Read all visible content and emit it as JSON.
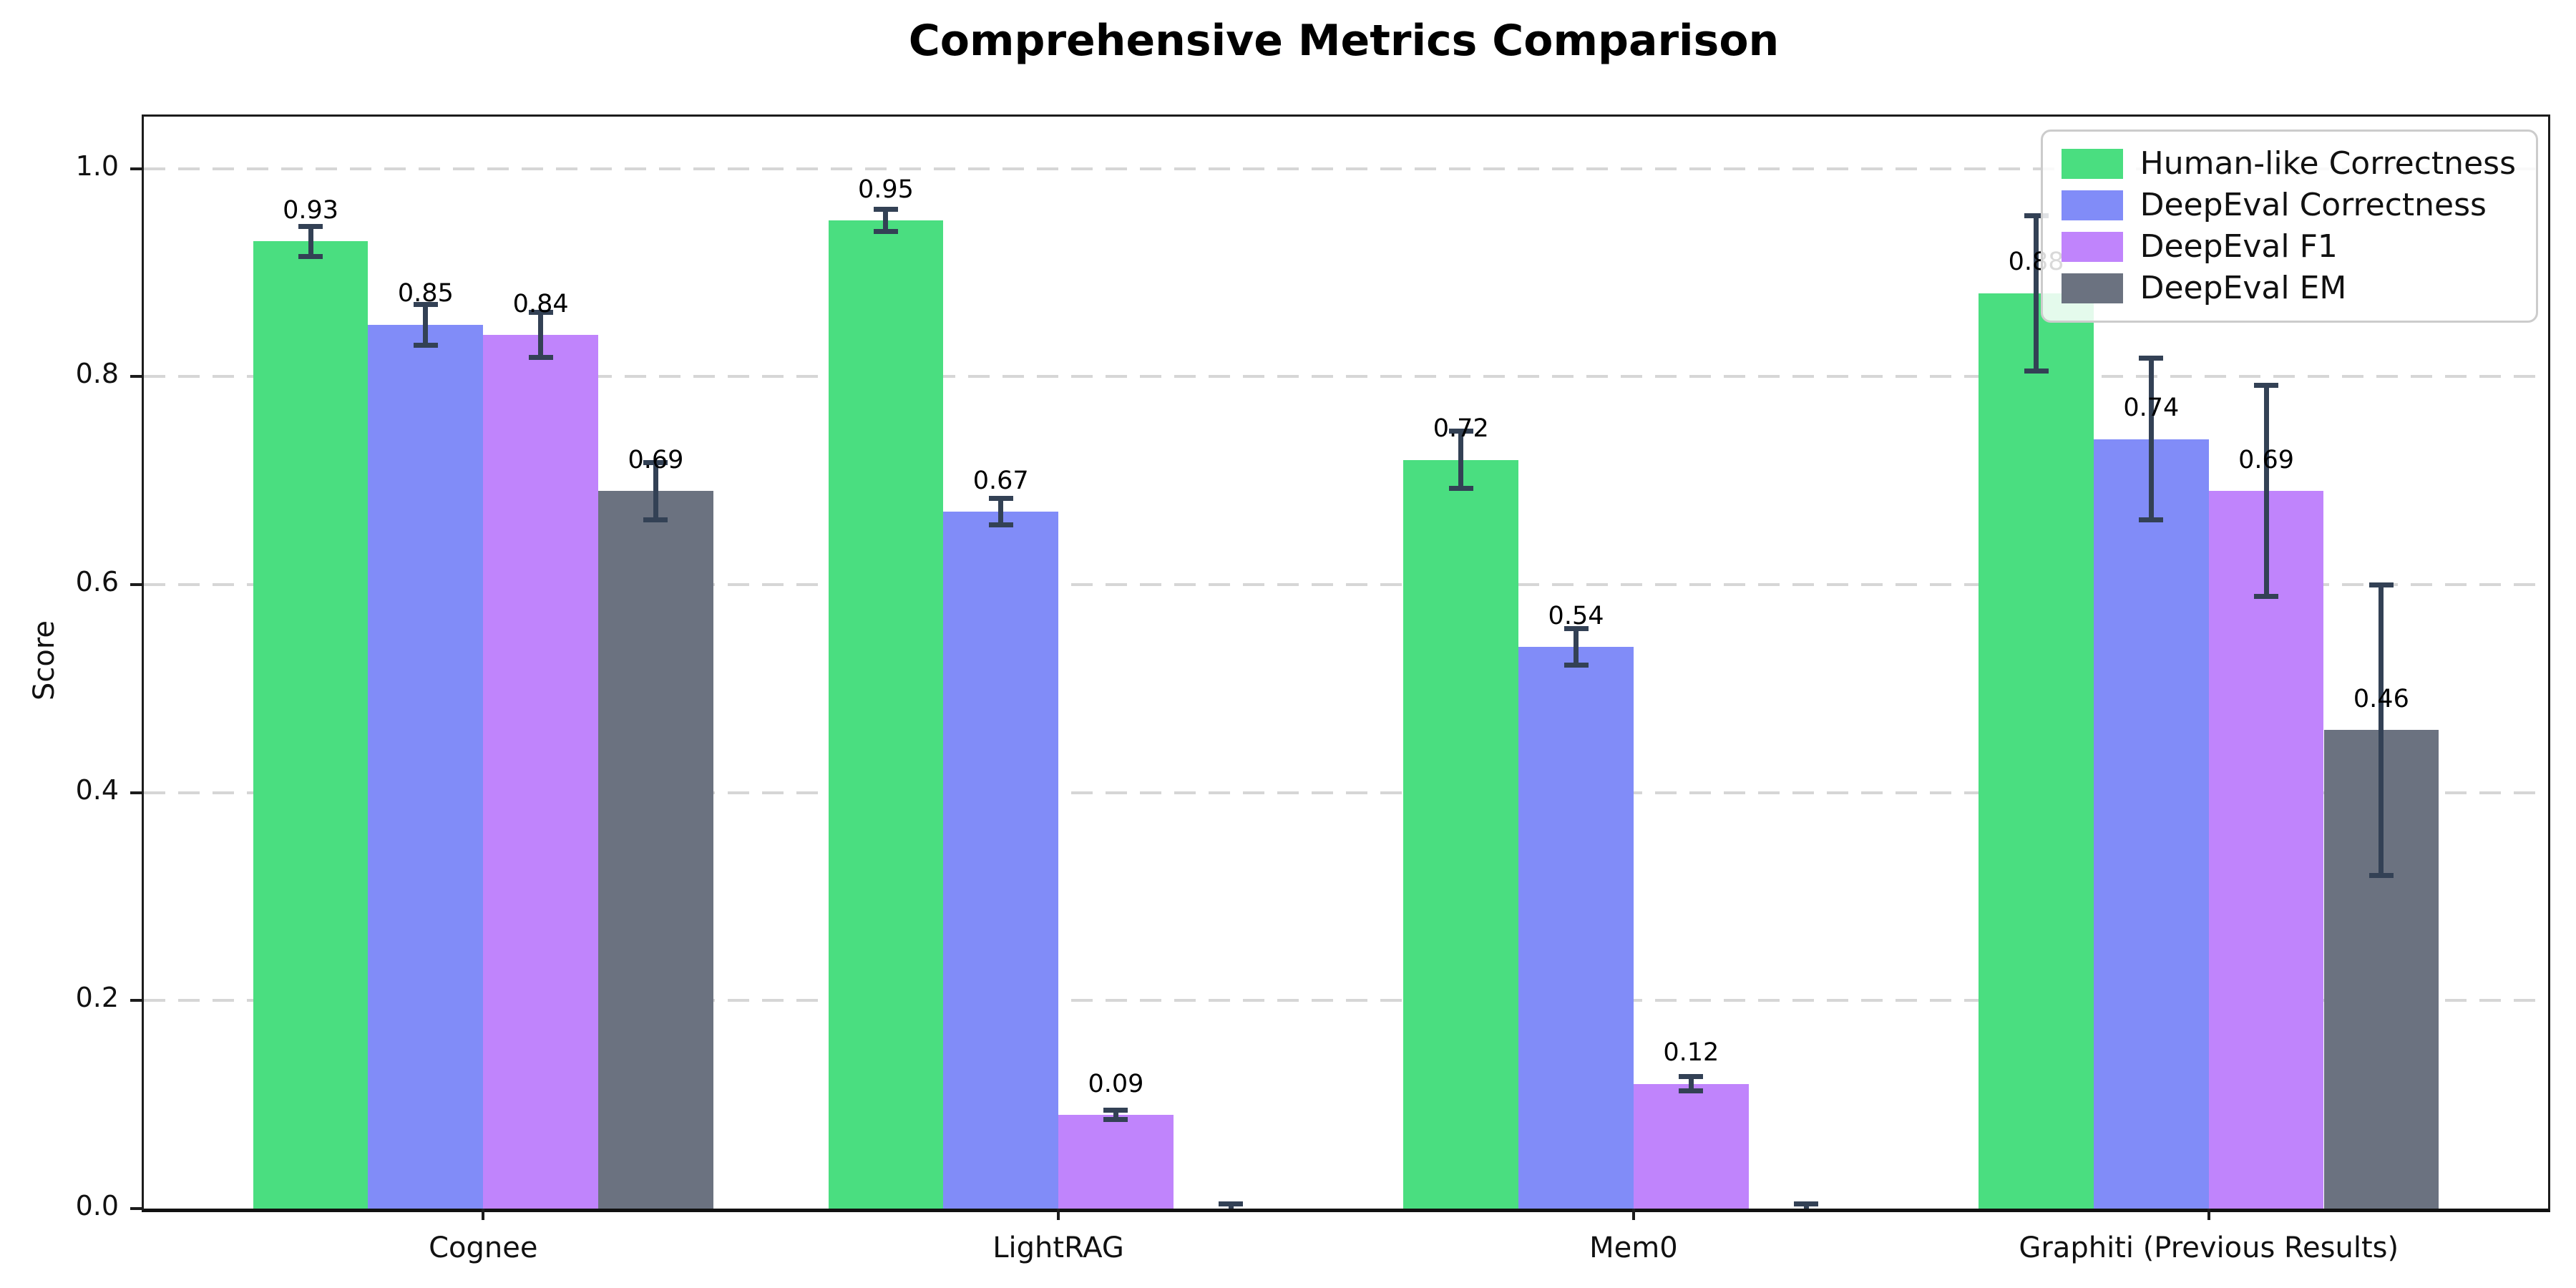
{
  "chart_data": {
    "type": "bar",
    "title": "Comprehensive Metrics Comparison",
    "ylabel": "Score",
    "xlabel": "",
    "ylim": [
      0,
      1.05
    ],
    "yticks": [
      "0.0",
      "0.2",
      "0.4",
      "0.6",
      "0.8",
      "1.0"
    ],
    "ytick_values": [
      0.0,
      0.2,
      0.4,
      0.6,
      0.8,
      1.0
    ],
    "grid": "horizontal-dashed",
    "legend_position": "upper right",
    "error_bar_color": "#334155",
    "categories": [
      "Cognee",
      "LightRAG",
      "Mem0",
      "Graphiti (Previous Results)"
    ],
    "series": [
      {
        "name": "Human-like Correctness",
        "color": "#4ade80",
        "values": [
          0.93,
          0.95,
          0.72,
          0.88
        ],
        "errors": [
          0.015,
          0.011,
          0.028,
          0.075
        ],
        "labels": [
          "0.93",
          "0.95",
          "0.72",
          "0.88"
        ]
      },
      {
        "name": "DeepEval Correctness",
        "color": "#818cf8",
        "values": [
          0.85,
          0.67,
          0.54,
          0.74
        ],
        "errors": [
          0.02,
          0.013,
          0.018,
          0.078
        ],
        "labels": [
          "0.85",
          "0.67",
          "0.54",
          "0.74"
        ]
      },
      {
        "name": "DeepEval F1",
        "color": "#c084fc",
        "values": [
          0.84,
          0.09,
          0.12,
          0.69
        ],
        "errors": [
          0.022,
          0.005,
          0.007,
          0.102
        ],
        "labels": [
          "0.84",
          "0.09",
          "0.12",
          "0.69"
        ]
      },
      {
        "name": "DeepEval EM",
        "color": "#6b7280",
        "values": [
          0.69,
          0.0,
          0.0,
          0.46
        ],
        "errors": [
          0.028,
          0.005,
          0.005,
          0.14
        ],
        "labels": [
          "0.69",
          "",
          "",
          "0.46"
        ]
      }
    ]
  }
}
